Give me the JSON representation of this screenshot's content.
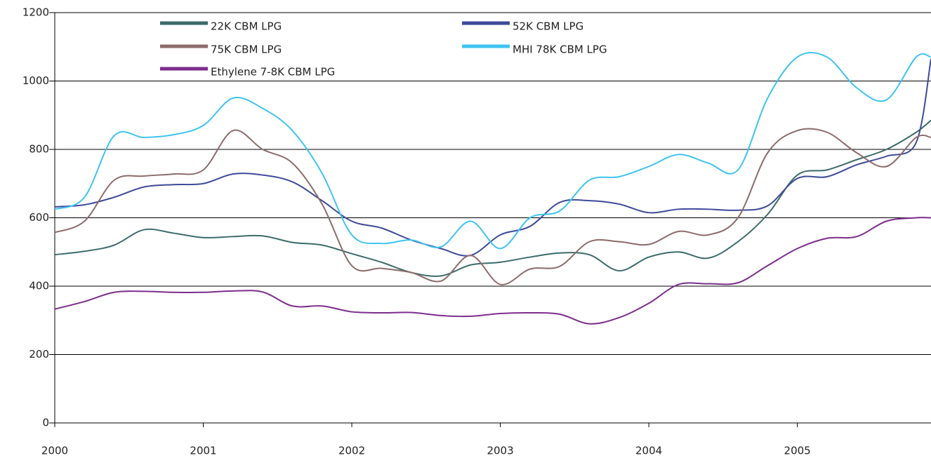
{
  "chart_data": {
    "type": "line",
    "x": [
      2000,
      2000.2,
      2000.4,
      2000.6,
      2000.8,
      2001,
      2001.2,
      2001.4,
      2001.6,
      2001.8,
      2002,
      2002.2,
      2002.4,
      2002.6,
      2002.8,
      2003,
      2003.2,
      2003.4,
      2003.6,
      2003.8,
      2004,
      2004.2,
      2004.4,
      2004.6,
      2004.8,
      2005,
      2005.2,
      2005.4,
      2005.6,
      2005.8,
      2005.9
    ],
    "series": [
      {
        "name": "22K CBM LPG",
        "color": "#3b6b69",
        "values": [
          492,
          502,
          520,
          565,
          555,
          542,
          545,
          547,
          528,
          520,
          495,
          470,
          440,
          430,
          462,
          470,
          485,
          497,
          492,
          445,
          485,
          500,
          482,
          530,
          610,
          725,
          740,
          770,
          800,
          850,
          885
        ]
      },
      {
        "name": "52K CBM LPG",
        "color": "#3e4a9a",
        "values": [
          632,
          638,
          660,
          690,
          697,
          700,
          728,
          725,
          705,
          650,
          590,
          570,
          535,
          510,
          490,
          550,
          575,
          645,
          650,
          640,
          615,
          625,
          625,
          622,
          635,
          715,
          720,
          755,
          780,
          820,
          1065
        ]
      },
      {
        "name": "75K CBM LPG",
        "color": "#8c6b6b",
        "values": [
          557,
          590,
          710,
          722,
          728,
          740,
          855,
          800,
          760,
          640,
          460,
          452,
          440,
          415,
          490,
          405,
          450,
          458,
          530,
          530,
          522,
          560,
          550,
          600,
          790,
          855,
          850,
          790,
          750,
          835,
          835
        ]
      },
      {
        "name": "MHI 78K CBM LPG",
        "color": "#3ec4f0",
        "values": [
          625,
          660,
          840,
          835,
          843,
          870,
          950,
          920,
          855,
          730,
          550,
          525,
          535,
          515,
          590,
          510,
          600,
          620,
          710,
          720,
          750,
          785,
          760,
          740,
          950,
          1070,
          1070,
          980,
          945,
          1070,
          1070
        ]
      },
      {
        "name": "Ethylene 7-8K CBM LPG",
        "color": "#7b2d8b",
        "values": [
          333,
          355,
          382,
          385,
          382,
          382,
          386,
          383,
          342,
          342,
          325,
          322,
          323,
          314,
          312,
          320,
          322,
          318,
          290,
          308,
          350,
          405,
          407,
          410,
          460,
          510,
          540,
          545,
          590,
          600,
          600
        ]
      }
    ],
    "xlim": [
      2000,
      2005.9
    ],
    "xticks": [
      2000,
      2001,
      2002,
      2003,
      2004,
      2005
    ],
    "ylim": [
      0,
      1200
    ],
    "yticks": [
      0,
      200,
      400,
      600,
      800,
      1000,
      1200
    ],
    "grid": true
  }
}
